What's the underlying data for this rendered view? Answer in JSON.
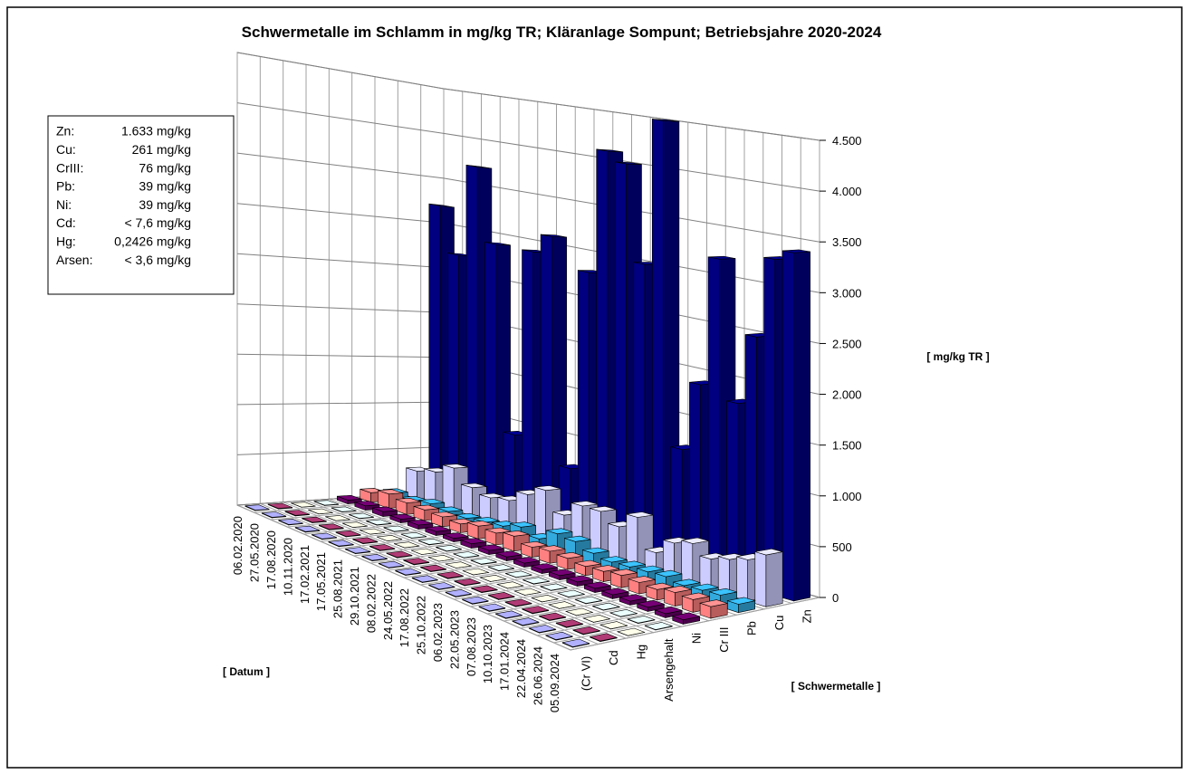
{
  "chart_data": {
    "type": "bar3d",
    "title": "Schwermetalle im Schlamm in mg/kg TR; Kläranlage Sompunt;  Betriebsjahre 2020-2024",
    "x_label": "[ Datum ]",
    "depth_label": "[ Schwermetalle ]",
    "y_label": "[ mg/kg TR ]",
    "x": [
      "06.02.2020",
      "27.05.2020",
      "17.08.2020",
      "10.11.2020",
      "17.02.2021",
      "17.05.2021",
      "25.08.2021",
      "29.10.2021",
      "08.02.2022",
      "24.05.2022",
      "17.08.2022",
      "25.10.2022",
      "06.02.2023",
      "22.05.2023",
      "07.08.2023",
      "10.10.2023",
      "17.01.2024",
      "22.04.2024",
      "26.06.2024",
      "05.09.2024"
    ],
    "series": [
      {
        "name": "(Cr VI)",
        "color": "#9999ff",
        "values": [
          5,
          5,
          5,
          5,
          5,
          5,
          5,
          5,
          5,
          5,
          5,
          5,
          5,
          5,
          5,
          5,
          5,
          5,
          5,
          5
        ]
      },
      {
        "name": "Cd",
        "color": "#993366",
        "values": [
          5,
          5,
          5,
          5,
          5,
          5,
          5,
          5,
          5,
          5,
          5,
          5,
          5,
          5,
          5,
          5,
          5,
          5,
          5,
          5
        ]
      },
      {
        "name": "Hg",
        "color": "#ffffcc",
        "values": [
          1,
          1,
          1,
          1,
          1,
          1,
          1,
          1,
          1,
          1,
          1,
          1,
          1,
          1,
          1,
          1,
          1,
          1,
          1,
          1
        ]
      },
      {
        "name": "Arsengehalt",
        "color": "#ccffff",
        "values": [
          4,
          4,
          3,
          4,
          4,
          3,
          4,
          4,
          3,
          4,
          4,
          3,
          4,
          4,
          3,
          4,
          4,
          3,
          4,
          4
        ]
      },
      {
        "name": "Ni",
        "color": "#660066",
        "values": [
          40,
          45,
          50,
          38,
          42,
          40,
          36,
          44,
          41,
          39,
          40,
          38,
          42,
          41,
          40,
          39,
          38,
          40,
          39,
          41
        ]
      },
      {
        "name": "Cr III",
        "color": "#ff8080",
        "values": [
          100,
          150,
          120,
          110,
          100,
          90,
          130,
          120,
          150,
          100,
          120,
          110,
          90,
          100,
          120,
          110,
          100,
          130,
          120,
          110
        ]
      },
      {
        "name": "Pb",
        "color": "#33aadd",
        "values": [
          80,
          60,
          90,
          70,
          60,
          80,
          100,
          150,
          90,
          200,
          180,
          120,
          90,
          100,
          110,
          120,
          90,
          100,
          110,
          80
        ]
      },
      {
        "name": "Cu",
        "color": "#ccccff",
        "values": [
          300,
          350,
          450,
          300,
          250,
          280,
          400,
          500,
          300,
          450,
          450,
          350,
          500,
          200,
          350,
          400,
          300,
          350,
          400,
          500
        ]
      },
      {
        "name": "Zn",
        "color": "#000080",
        "values": [
          3200,
          2700,
          3700,
          2900,
          900,
          2900,
          3100,
          700,
          2800,
          4100,
          4000,
          3000,
          4500,
          1200,
          1900,
          3200,
          1800,
          2500,
          3300,
          3400
        ]
      }
    ],
    "ylim": [
      0,
      4500
    ],
    "yticks": [
      0,
      500,
      {
        "value": 1000,
        "label": "1.000"
      },
      {
        "value": 1500,
        "label": "1.500"
      },
      {
        "value": 2000,
        "label": "2.000"
      },
      {
        "value": 2500,
        "label": "2.500"
      },
      {
        "value": 3000,
        "label": "3.000"
      },
      {
        "value": 3500,
        "label": "3.500"
      },
      {
        "value": 4000,
        "label": "4.000"
      },
      {
        "value": 4500,
        "label": "4.500"
      }
    ],
    "grid": true,
    "annotation": [
      {
        "label": "Zn:",
        "text": "1.633 mg/kg"
      },
      {
        "label": "Cu:",
        "text": "261 mg/kg"
      },
      {
        "label": "CrIII:",
        "text": "76 mg/kg"
      },
      {
        "label": "Pb:",
        "text": "39 mg/kg"
      },
      {
        "label": "Ni:",
        "text": "39 mg/kg"
      },
      {
        "label": "Cd:",
        "text": "< 7,6 mg/kg"
      },
      {
        "label": "Hg:",
        "text": "0,2426 mg/kg"
      },
      {
        "label": "Arsen:",
        "text": "< 3,6 mg/kg"
      }
    ]
  }
}
